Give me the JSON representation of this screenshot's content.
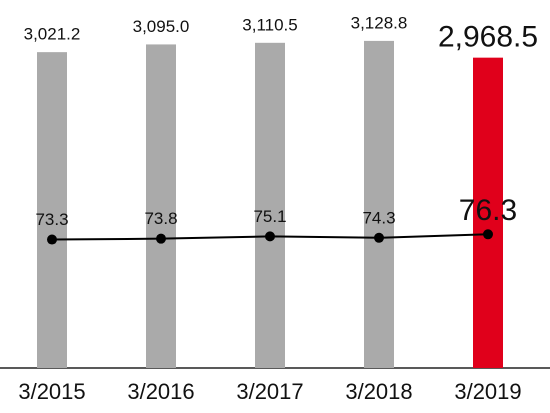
{
  "chart_data": {
    "type": "bar-line",
    "categories": [
      "3/2015",
      "3/2016",
      "3/2017",
      "3/2018",
      "3/2019"
    ],
    "series": [
      {
        "type": "bar",
        "values": [
          3021.2,
          3095.0,
          3110.5,
          3128.8,
          2968.5
        ],
        "value_labels": [
          "3,021.2",
          "3,095.0",
          "3,110.5",
          "3,128.8",
          "2,968.5"
        ],
        "colors": [
          "#aaaaaa",
          "#aaaaaa",
          "#aaaaaa",
          "#aaaaaa",
          "#e0001b"
        ]
      },
      {
        "type": "line",
        "axis": "y2",
        "values": [
          73.3,
          73.8,
          75.1,
          74.3,
          76.3
        ],
        "color": "#000000"
      }
    ],
    "ylim": [
      0,
      3520
    ],
    "y2lim": [
      0,
      210
    ]
  }
}
